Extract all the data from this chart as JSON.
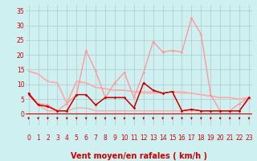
{
  "background_color": "#cff0f0",
  "grid_color": "#b0c8c8",
  "xlabel": "Vent moyen/en rafales ( km/h )",
  "xlabel_color": "#cc0000",
  "xlabel_fontsize": 7,
  "tick_color": "#cc0000",
  "ytick_labels": [
    "0",
    "5",
    "10",
    "15",
    "20",
    "25",
    "30",
    "35"
  ],
  "yticks": [
    0,
    5,
    10,
    15,
    20,
    25,
    30,
    35
  ],
  "xticks": [
    0,
    1,
    2,
    3,
    4,
    5,
    6,
    7,
    8,
    9,
    10,
    11,
    12,
    13,
    14,
    15,
    16,
    17,
    18,
    19,
    20,
    21,
    22,
    23
  ],
  "xlim": [
    -0.3,
    23.3
  ],
  "ylim": [
    -4,
    37
  ],
  "ymin_display": 0,
  "x": [
    0,
    1,
    2,
    3,
    4,
    5,
    6,
    7,
    8,
    9,
    10,
    11,
    12,
    13,
    14,
    15,
    16,
    17,
    18,
    19,
    20,
    21,
    22,
    23
  ],
  "series": {
    "line_top1": {
      "y": [
        14.5,
        13.5,
        11.0,
        10.5,
        3.5,
        11.0,
        10.5,
        9.0,
        8.5,
        8.0,
        8.0,
        7.5,
        7.0,
        7.0,
        7.0,
        7.5,
        7.0,
        7.0,
        6.5,
        6.0,
        5.5,
        5.5,
        5.0,
        5.5
      ],
      "color": "#ffaaaa",
      "lw": 1.0,
      "zorder": 2
    },
    "line_top2": {
      "y": [
        14.5,
        13.5,
        11.0,
        10.5,
        3.5,
        11.0,
        10.5,
        9.0,
        8.5,
        8.0,
        8.0,
        7.5,
        7.5,
        7.5,
        7.0,
        7.5,
        7.5,
        7.0,
        6.5,
        6.0,
        5.5,
        5.5,
        5.0,
        5.5
      ],
      "color": "#ffaaaa",
      "lw": 1.0,
      "zorder": 2
    },
    "line_bot": {
      "y": [
        6.5,
        3.0,
        1.0,
        1.0,
        1.0,
        2.0,
        2.0,
        1.0,
        1.0,
        1.0,
        1.0,
        1.0,
        1.0,
        1.0,
        1.0,
        1.0,
        1.0,
        1.0,
        1.0,
        1.0,
        1.0,
        1.0,
        1.0,
        5.0
      ],
      "color": "#ffaaaa",
      "lw": 1.0,
      "zorder": 2
    },
    "rafales": {
      "y": [
        7.0,
        3.5,
        3.0,
        1.0,
        3.5,
        6.5,
        21.5,
        14.5,
        5.5,
        10.5,
        14.0,
        5.5,
        14.0,
        24.5,
        21.0,
        21.5,
        21.0,
        32.5,
        27.0,
        6.5,
        1.0,
        1.0,
        3.5,
        5.5
      ],
      "color": "#ff9999",
      "lw": 1.0,
      "marker": "D",
      "ms": 1.8,
      "zorder": 3
    },
    "vent_moyen": {
      "y": [
        7.0,
        3.0,
        2.5,
        1.0,
        1.0,
        6.5,
        6.5,
        3.0,
        5.5,
        5.5,
        5.5,
        2.0,
        10.5,
        8.0,
        7.0,
        7.5,
        1.0,
        1.5,
        1.0,
        1.0,
        1.0,
        1.0,
        1.0,
        5.5
      ],
      "color": "#cc0000",
      "lw": 1.0,
      "marker": "D",
      "ms": 1.8,
      "zorder": 5
    },
    "vent_moyen2": {
      "y": [
        6.5,
        3.0,
        2.5,
        1.0,
        1.0,
        6.5,
        6.5,
        3.0,
        5.5,
        5.5,
        5.5,
        2.0,
        10.5,
        8.0,
        7.0,
        7.5,
        1.0,
        1.5,
        1.0,
        1.0,
        1.0,
        1.0,
        1.0,
        5.5
      ],
      "color": "#cc0000",
      "lw": 0.7,
      "marker": null,
      "ms": 0,
      "zorder": 4
    }
  },
  "arrow_color": "#cc0000",
  "hline_color": "#cc0000",
  "hline_y": 0
}
